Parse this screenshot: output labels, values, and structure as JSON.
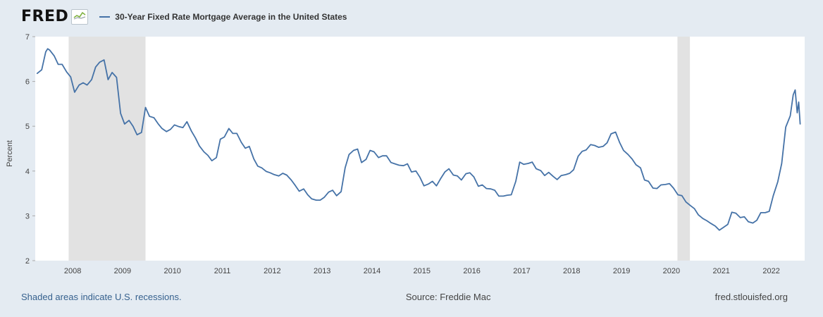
{
  "header": {
    "logo": "FRED",
    "legend_label": "30-Year Fixed Rate Mortgage Average in the United States"
  },
  "footer": {
    "left": "Shaded areas indicate U.S. recessions.",
    "center": "Source: Freddie Mac",
    "right": "fred.stlouisfed.org"
  },
  "chart_data": {
    "type": "line",
    "title": "30-Year Fixed Rate Mortgage Average in the United States",
    "ylabel": "Percent",
    "ylim": [
      2,
      7
    ],
    "xlim": [
      2007.25,
      2022.67
    ],
    "yticks": [
      2,
      3,
      4,
      5,
      6,
      7
    ],
    "xticks": [
      2008,
      2009,
      2010,
      2011,
      2012,
      2013,
      2014,
      2015,
      2016,
      2017,
      2018,
      2019,
      2020,
      2021,
      2022
    ],
    "grid": false,
    "legend_position": "top",
    "line_color": "#4572a7",
    "recession_color": "#e2e2e2",
    "plot_bg": "#ffffff",
    "recessions": [
      [
        2007.92,
        2009.46
      ],
      [
        2020.12,
        2020.37
      ]
    ],
    "series": [
      {
        "name": "30-Year Fixed Rate Mortgage Average in the United States",
        "x": [
          2007.29,
          2007.38,
          2007.46,
          2007.5,
          2007.54,
          2007.63,
          2007.71,
          2007.79,
          2007.88,
          2007.96,
          2008.04,
          2008.13,
          2008.21,
          2008.29,
          2008.38,
          2008.46,
          2008.54,
          2008.63,
          2008.71,
          2008.79,
          2008.88,
          2008.96,
          2009.04,
          2009.13,
          2009.21,
          2009.29,
          2009.38,
          2009.46,
          2009.54,
          2009.63,
          2009.71,
          2009.79,
          2009.88,
          2009.96,
          2010.04,
          2010.13,
          2010.21,
          2010.29,
          2010.38,
          2010.46,
          2010.54,
          2010.63,
          2010.71,
          2010.79,
          2010.88,
          2010.96,
          2011.04,
          2011.13,
          2011.21,
          2011.29,
          2011.38,
          2011.46,
          2011.54,
          2011.63,
          2011.71,
          2011.79,
          2011.88,
          2011.96,
          2012.04,
          2012.13,
          2012.21,
          2012.29,
          2012.38,
          2012.46,
          2012.54,
          2012.63,
          2012.71,
          2012.79,
          2012.88,
          2012.96,
          2013.04,
          2013.13,
          2013.21,
          2013.29,
          2013.38,
          2013.46,
          2013.54,
          2013.63,
          2013.71,
          2013.79,
          2013.88,
          2013.96,
          2014.04,
          2014.13,
          2014.21,
          2014.29,
          2014.38,
          2014.46,
          2014.54,
          2014.63,
          2014.71,
          2014.79,
          2014.88,
          2014.96,
          2015.04,
          2015.13,
          2015.21,
          2015.29,
          2015.38,
          2015.46,
          2015.54,
          2015.63,
          2015.71,
          2015.79,
          2015.88,
          2015.96,
          2016.04,
          2016.13,
          2016.21,
          2016.29,
          2016.38,
          2016.46,
          2016.54,
          2016.63,
          2016.71,
          2016.79,
          2016.88,
          2016.96,
          2017.04,
          2017.13,
          2017.21,
          2017.29,
          2017.38,
          2017.46,
          2017.54,
          2017.63,
          2017.71,
          2017.79,
          2017.88,
          2017.96,
          2018.04,
          2018.13,
          2018.21,
          2018.29,
          2018.38,
          2018.46,
          2018.54,
          2018.63,
          2018.71,
          2018.79,
          2018.88,
          2018.96,
          2019.04,
          2019.13,
          2019.21,
          2019.29,
          2019.38,
          2019.46,
          2019.54,
          2019.63,
          2019.71,
          2019.79,
          2019.88,
          2019.96,
          2020.04,
          2020.13,
          2020.21,
          2020.29,
          2020.38,
          2020.46,
          2020.54,
          2020.63,
          2020.71,
          2020.79,
          2020.88,
          2020.96,
          2021.04,
          2021.13,
          2021.21,
          2021.29,
          2021.38,
          2021.46,
          2021.54,
          2021.63,
          2021.71,
          2021.79,
          2021.88,
          2021.96,
          2022.04,
          2022.13,
          2022.21,
          2022.29,
          2022.38,
          2022.44,
          2022.48,
          2022.52,
          2022.55,
          2022.58
        ],
        "y": [
          6.18,
          6.26,
          6.66,
          6.73,
          6.7,
          6.57,
          6.38,
          6.38,
          6.21,
          6.1,
          5.76,
          5.92,
          5.97,
          5.92,
          6.04,
          6.32,
          6.43,
          6.48,
          6.04,
          6.2,
          6.09,
          5.29,
          5.05,
          5.13,
          5.0,
          4.81,
          4.86,
          5.42,
          5.22,
          5.19,
          5.06,
          4.95,
          4.88,
          4.93,
          5.03,
          4.99,
          4.97,
          5.1,
          4.89,
          4.74,
          4.56,
          4.43,
          4.35,
          4.23,
          4.3,
          4.71,
          4.76,
          4.95,
          4.84,
          4.84,
          4.64,
          4.51,
          4.55,
          4.27,
          4.11,
          4.07,
          3.99,
          3.96,
          3.92,
          3.89,
          3.95,
          3.91,
          3.8,
          3.68,
          3.55,
          3.6,
          3.47,
          3.38,
          3.35,
          3.35,
          3.41,
          3.53,
          3.57,
          3.45,
          3.54,
          4.07,
          4.37,
          4.46,
          4.49,
          4.19,
          4.26,
          4.46,
          4.43,
          4.3,
          4.34,
          4.34,
          4.19,
          4.16,
          4.13,
          4.12,
          4.16,
          3.98,
          4.0,
          3.86,
          3.67,
          3.71,
          3.77,
          3.67,
          3.84,
          3.98,
          4.05,
          3.91,
          3.89,
          3.8,
          3.94,
          3.96,
          3.87,
          3.66,
          3.69,
          3.61,
          3.6,
          3.57,
          3.44,
          3.44,
          3.46,
          3.47,
          3.77,
          4.2,
          4.15,
          4.17,
          4.2,
          4.05,
          4.01,
          3.9,
          3.97,
          3.88,
          3.81,
          3.9,
          3.92,
          3.95,
          4.03,
          4.33,
          4.44,
          4.47,
          4.59,
          4.57,
          4.53,
          4.55,
          4.63,
          4.83,
          4.87,
          4.64,
          4.46,
          4.37,
          4.27,
          4.14,
          4.07,
          3.8,
          3.77,
          3.62,
          3.61,
          3.69,
          3.7,
          3.72,
          3.62,
          3.47,
          3.45,
          3.31,
          3.23,
          3.16,
          3.02,
          2.94,
          2.89,
          2.83,
          2.77,
          2.68,
          2.74,
          2.81,
          3.08,
          3.06,
          2.96,
          2.98,
          2.87,
          2.84,
          2.9,
          3.07,
          3.07,
          3.1,
          3.45,
          3.76,
          4.17,
          4.98,
          5.23,
          5.7,
          5.81,
          5.3,
          5.54,
          5.05
        ]
      }
    ]
  }
}
